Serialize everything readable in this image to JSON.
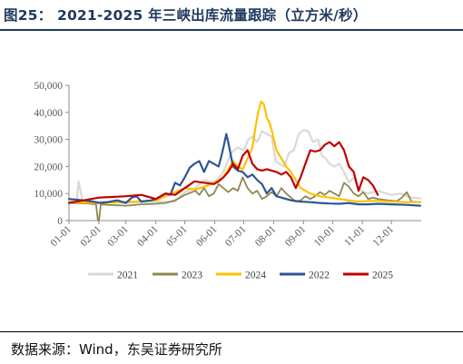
{
  "title": "图25：  2021-2025 年三峡出库流量跟踪（立方米/秒）",
  "source": "数据来源：Wind，东吴证券研究所",
  "chart_data": {
    "type": "line",
    "title": "",
    "xlabel": "",
    "ylabel": "",
    "x_ticks": [
      "01-01",
      "02-01",
      "03-01",
      "04-01",
      "05-01",
      "06-01",
      "07-01",
      "08-01",
      "09-01",
      "10-01",
      "11-01",
      "12-01"
    ],
    "y_ticks": [
      "0",
      "10,000",
      "20,000",
      "30,000",
      "40,000",
      "50,000"
    ],
    "ylim": [
      0,
      50000
    ],
    "xlim": [
      0,
      365
    ],
    "grid": false,
    "legend": "bottom",
    "series": [
      {
        "name": "2021",
        "color": "#d9d9d9",
        "width": 2.2,
        "x": [
          0,
          8,
          10,
          14,
          17,
          20,
          31,
          45,
          59,
          75,
          90,
          100,
          110,
          120,
          131,
          140,
          151,
          160,
          168,
          175,
          181,
          186,
          190,
          195,
          200,
          205,
          210,
          214,
          218,
          223,
          228,
          233,
          238,
          243,
          248,
          253,
          258,
          262,
          266,
          270,
          275,
          280,
          285,
          290,
          295,
          300,
          305,
          310,
          320,
          334,
          344,
          350,
          355,
          364
        ],
        "y": [
          7000,
          7200,
          14500,
          7200,
          7000,
          6800,
          7000,
          6800,
          6500,
          6800,
          7000,
          6900,
          7000,
          10500,
          12000,
          15000,
          14000,
          18000,
          25000,
          27000,
          26000,
          30000,
          31000,
          29000,
          33000,
          32000,
          31000,
          22000,
          21000,
          20000,
          25000,
          26000,
          32000,
          33500,
          33000,
          29000,
          30000,
          24000,
          23000,
          21000,
          20000,
          21000,
          18000,
          14000,
          16000,
          12000,
          10500,
          10000,
          11000,
          9500,
          10000,
          9000,
          8500,
          8200
        ]
      },
      {
        "name": "2023",
        "color": "#8c8a4f",
        "width": 1.8,
        "x": [
          0,
          20,
          28,
          30,
          31,
          33,
          40,
          59,
          75,
          90,
          100,
          110,
          120,
          131,
          135,
          140,
          145,
          150,
          155,
          160,
          165,
          170,
          175,
          180,
          185,
          190,
          195,
          200,
          205,
          210,
          215,
          220,
          225,
          230,
          235,
          240,
          245,
          250,
          255,
          260,
          265,
          270,
          275,
          280,
          285,
          290,
          295,
          300,
          305,
          310,
          315,
          320,
          330,
          340,
          345,
          350,
          355,
          364
        ],
        "y": [
          6500,
          6300,
          6000,
          0,
          0,
          6000,
          5800,
          5500,
          6000,
          6200,
          6500,
          7500,
          9500,
          11000,
          9500,
          12000,
          9000,
          10000,
          13500,
          12000,
          10500,
          12000,
          11000,
          16000,
          12000,
          10000,
          11000,
          8000,
          9000,
          10500,
          9000,
          12000,
          10000,
          8500,
          7000,
          7500,
          9000,
          8000,
          9000,
          10500,
          9500,
          11000,
          10000,
          9000,
          14000,
          12500,
          10000,
          9000,
          10500,
          8000,
          8500,
          8000,
          7500,
          7200,
          8500,
          10500,
          7000,
          6800
        ]
      },
      {
        "name": "2024",
        "color": "#ffc000",
        "width": 2.2,
        "x": [
          0,
          31,
          59,
          90,
          110,
          120,
          131,
          140,
          150,
          160,
          165,
          170,
          175,
          180,
          185,
          190,
          193,
          196,
          199,
          202,
          205,
          208,
          211,
          215,
          220,
          225,
          230,
          235,
          240,
          250,
          260,
          270,
          280,
          290,
          300,
          310,
          320,
          334,
          350,
          364
        ],
        "y": [
          6800,
          6500,
          6800,
          7500,
          10500,
          12000,
          11500,
          12500,
          14000,
          16000,
          19000,
          22000,
          20000,
          19000,
          23000,
          27000,
          34000,
          40000,
          44000,
          43000,
          38000,
          36000,
          32000,
          26000,
          23000,
          20000,
          18000,
          15000,
          12000,
          10000,
          9000,
          8500,
          8000,
          7500,
          7000,
          7200,
          7300,
          7000,
          6800,
          6800
        ]
      },
      {
        "name": "2022",
        "color": "#2e5597",
        "width": 2.2,
        "x": [
          0,
          15,
          25,
          31,
          40,
          50,
          59,
          65,
          70,
          75,
          85,
          90,
          100,
          105,
          110,
          115,
          120,
          125,
          130,
          135,
          140,
          145,
          150,
          155,
          158,
          160,
          163,
          165,
          170,
          175,
          180,
          185,
          190,
          195,
          200,
          205,
          210,
          215,
          220,
          225,
          230,
          240,
          250,
          260,
          270,
          280,
          290,
          300,
          310,
          320,
          334,
          350,
          364
        ],
        "y": [
          8000,
          7500,
          7000,
          6500,
          6800,
          7500,
          6500,
          8500,
          9000,
          7000,
          7500,
          8000,
          10000,
          9500,
          14000,
          13000,
          16000,
          19500,
          21000,
          22000,
          18000,
          22000,
          21000,
          20000,
          24000,
          27000,
          32000,
          29000,
          20000,
          18500,
          18000,
          16000,
          17000,
          15000,
          13500,
          10000,
          12000,
          9000,
          8500,
          8000,
          7500,
          7000,
          6800,
          6500,
          6300,
          6200,
          6500,
          6000,
          6000,
          6200,
          6000,
          5800,
          5500
        ]
      },
      {
        "name": "2025",
        "color": "#c00000",
        "width": 2.2,
        "x": [
          0,
          31,
          59,
          75,
          90,
          100,
          110,
          120,
          130,
          140,
          150,
          155,
          160,
          165,
          170,
          175,
          180,
          185,
          190,
          195,
          200,
          205,
          210,
          215,
          220,
          225,
          230,
          235,
          240,
          245,
          250,
          255,
          260,
          265,
          270,
          275,
          280,
          285,
          290,
          295,
          300,
          305,
          310,
          315,
          320
        ],
        "y": [
          6500,
          8500,
          9000,
          9500,
          8000,
          10000,
          9500,
          12000,
          14500,
          14000,
          13500,
          14500,
          16000,
          18000,
          21000,
          19000,
          24000,
          26000,
          21000,
          19000,
          18500,
          19000,
          18500,
          18000,
          17000,
          18000,
          16000,
          12000,
          16000,
          21000,
          26000,
          25500,
          26000,
          28000,
          29000,
          27500,
          29000,
          26000,
          20000,
          18000,
          11000,
          16000,
          15000,
          13000,
          9500
        ]
      }
    ]
  }
}
